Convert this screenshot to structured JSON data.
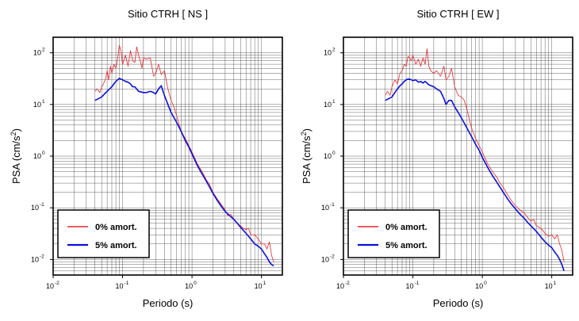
{
  "chart_data": [
    {
      "type": "line",
      "title": "Sitio CTRH [ NS ]",
      "xlabel": "Periodo (s)",
      "ylabel": "PSA (cm/s",
      "ylabel_exp": "2",
      "ylabel_close": ")",
      "x_scale": "log",
      "y_scale": "log",
      "xlim": [
        0.01,
        20
      ],
      "ylim": [
        0.005,
        200
      ],
      "x_ticks": [
        {
          "base": "10",
          "exp": "-2",
          "value": 0.01
        },
        {
          "base": "10",
          "exp": "-1",
          "value": 0.1
        },
        {
          "base": "10",
          "exp": "0",
          "value": 1
        },
        {
          "base": "10",
          "exp": "1",
          "value": 10
        }
      ],
      "y_ticks": [
        {
          "base": "10",
          "exp": "-2",
          "value": 0.01
        },
        {
          "base": "10",
          "exp": "-1",
          "value": 0.1
        },
        {
          "base": "10",
          "exp": "0",
          "value": 1
        },
        {
          "base": "10",
          "exp": "1",
          "value": 10
        },
        {
          "base": "10",
          "exp": "2",
          "value": 100
        }
      ],
      "grid": true,
      "legend_position": "bottom-left",
      "series": [
        {
          "name": "0% amort.",
          "color": "#e8262a",
          "x": [
            0.04,
            0.043,
            0.047,
            0.05,
            0.053,
            0.057,
            0.06,
            0.063,
            0.067,
            0.07,
            0.075,
            0.08,
            0.085,
            0.09,
            0.095,
            0.1,
            0.11,
            0.12,
            0.13,
            0.14,
            0.15,
            0.16,
            0.17,
            0.18,
            0.19,
            0.2,
            0.22,
            0.25,
            0.28,
            0.3,
            0.33,
            0.36,
            0.4,
            0.45,
            0.5,
            0.55,
            0.6,
            0.7,
            0.8,
            0.9,
            1.0,
            1.2,
            1.4,
            1.6,
            1.8,
            2.0,
            2.3,
            2.6,
            3.0,
            3.3,
            3.6,
            4.0,
            4.5,
            5.0,
            5.5,
            6.0,
            6.5,
            7.0,
            8.0,
            9.0,
            10.0,
            11.0,
            12.0,
            13.0,
            14.0,
            15.0
          ],
          "y": [
            18,
            20,
            17,
            22,
            25,
            32,
            45,
            30,
            55,
            40,
            60,
            50,
            80,
            140,
            110,
            60,
            90,
            55,
            110,
            70,
            65,
            130,
            90,
            70,
            50,
            80,
            75,
            80,
            35,
            40,
            60,
            38,
            45,
            20,
            12,
            9,
            6,
            3,
            2.2,
            1.6,
            1.2,
            0.7,
            0.5,
            0.35,
            0.28,
            0.2,
            0.15,
            0.12,
            0.09,
            0.07,
            0.075,
            0.06,
            0.05,
            0.045,
            0.04,
            0.038,
            0.04,
            0.03,
            0.03,
            0.025,
            0.02,
            0.02,
            0.016,
            0.022,
            0.012,
            0.009
          ]
        },
        {
          "name": "5% amort.",
          "color": "#0a10e0",
          "x": [
            0.04,
            0.045,
            0.05,
            0.055,
            0.06,
            0.065,
            0.07,
            0.075,
            0.08,
            0.085,
            0.09,
            0.095,
            0.1,
            0.11,
            0.12,
            0.13,
            0.14,
            0.15,
            0.17,
            0.2,
            0.22,
            0.25,
            0.28,
            0.3,
            0.33,
            0.36,
            0.4,
            0.45,
            0.5,
            0.6,
            0.7,
            0.8,
            0.9,
            1.0,
            1.2,
            1.4,
            1.6,
            1.8,
            2.0,
            2.3,
            2.6,
            3.0,
            3.5,
            4.0,
            4.5,
            5.0,
            6.0,
            7.0,
            8.0,
            9.0,
            10.0,
            11.0,
            12.0,
            13.0,
            14.0,
            15.0
          ],
          "y": [
            12,
            13,
            14,
            16,
            18,
            20,
            22,
            25,
            28,
            30,
            32,
            31,
            30,
            28,
            27,
            25,
            22,
            22,
            18,
            17,
            17,
            18,
            17,
            16,
            20,
            23,
            15,
            10,
            7,
            4.5,
            3,
            2.0,
            1.5,
            1.1,
            0.65,
            0.45,
            0.33,
            0.25,
            0.19,
            0.14,
            0.11,
            0.085,
            0.07,
            0.06,
            0.05,
            0.042,
            0.032,
            0.025,
            0.02,
            0.018,
            0.016,
            0.013,
            0.011,
            0.009,
            0.008,
            0.0075
          ]
        }
      ]
    },
    {
      "type": "line",
      "title": "Sitio CTRH [ EW ]",
      "xlabel": "Periodo (s)",
      "ylabel": "PSA (cm/s",
      "ylabel_exp": "2",
      "ylabel_close": ")",
      "x_scale": "log",
      "y_scale": "log",
      "xlim": [
        0.01,
        20
      ],
      "ylim": [
        0.005,
        200
      ],
      "x_ticks": [
        {
          "base": "10",
          "exp": "-2",
          "value": 0.01
        },
        {
          "base": "10",
          "exp": "-1",
          "value": 0.1
        },
        {
          "base": "10",
          "exp": "0",
          "value": 1
        },
        {
          "base": "10",
          "exp": "1",
          "value": 10
        }
      ],
      "y_ticks": [
        {
          "base": "10",
          "exp": "-2",
          "value": 0.01
        },
        {
          "base": "10",
          "exp": "-1",
          "value": 0.1
        },
        {
          "base": "10",
          "exp": "0",
          "value": 1
        },
        {
          "base": "10",
          "exp": "1",
          "value": 10
        },
        {
          "base": "10",
          "exp": "2",
          "value": 100
        }
      ],
      "grid": true,
      "legend_position": "bottom-left",
      "series": [
        {
          "name": "0% amort.",
          "color": "#e8262a",
          "x": [
            0.04,
            0.043,
            0.047,
            0.05,
            0.055,
            0.06,
            0.065,
            0.07,
            0.075,
            0.08,
            0.085,
            0.09,
            0.095,
            0.1,
            0.11,
            0.12,
            0.13,
            0.14,
            0.15,
            0.16,
            0.17,
            0.18,
            0.2,
            0.22,
            0.25,
            0.28,
            0.3,
            0.33,
            0.36,
            0.4,
            0.45,
            0.5,
            0.55,
            0.6,
            0.7,
            0.8,
            0.9,
            1.0,
            1.2,
            1.4,
            1.6,
            1.8,
            2.0,
            2.3,
            2.6,
            3.0,
            3.5,
            4.0,
            4.5,
            5.0,
            5.5,
            6.0,
            7.0,
            8.0,
            9.0,
            10.0,
            11.0,
            12.0,
            13.0,
            14.0,
            15.0
          ],
          "y": [
            15,
            18,
            15,
            22,
            30,
            25,
            40,
            45,
            60,
            55,
            85,
            80,
            70,
            90,
            60,
            75,
            55,
            80,
            60,
            120,
            55,
            45,
            40,
            45,
            35,
            55,
            30,
            35,
            50,
            22,
            15,
            14,
            12,
            8,
            3.5,
            2.2,
            1.6,
            1.2,
            0.7,
            0.5,
            0.4,
            0.3,
            0.25,
            0.18,
            0.14,
            0.11,
            0.09,
            0.08,
            0.065,
            0.055,
            0.06,
            0.045,
            0.04,
            0.032,
            0.028,
            0.03,
            0.025,
            0.03,
            0.02,
            0.015,
            0.009
          ]
        },
        {
          "name": "5% amort.",
          "color": "#0a10e0",
          "x": [
            0.04,
            0.045,
            0.05,
            0.055,
            0.06,
            0.065,
            0.07,
            0.075,
            0.08,
            0.085,
            0.09,
            0.095,
            0.1,
            0.11,
            0.12,
            0.13,
            0.14,
            0.15,
            0.17,
            0.2,
            0.22,
            0.25,
            0.28,
            0.3,
            0.33,
            0.36,
            0.4,
            0.45,
            0.5,
            0.6,
            0.7,
            0.8,
            0.9,
            1.0,
            1.2,
            1.4,
            1.6,
            1.8,
            2.0,
            2.3,
            2.6,
            3.0,
            3.5,
            4.0,
            4.5,
            5.0,
            6.0,
            7.0,
            8.0,
            9.0,
            10.0,
            11.0,
            12.0,
            13.0,
            14.0,
            15.0
          ],
          "y": [
            12,
            13,
            14,
            17,
            20,
            23,
            25,
            28,
            30,
            31,
            31,
            30,
            29,
            30,
            27,
            28,
            26,
            28,
            24,
            22,
            20,
            18,
            13,
            10,
            12,
            12,
            9,
            7,
            5.5,
            3.5,
            2.4,
            1.7,
            1.3,
            0.95,
            0.6,
            0.42,
            0.32,
            0.25,
            0.2,
            0.15,
            0.12,
            0.095,
            0.075,
            0.063,
            0.052,
            0.045,
            0.035,
            0.027,
            0.022,
            0.019,
            0.017,
            0.014,
            0.012,
            0.01,
            0.008,
            0.006
          ]
        }
      ]
    }
  ]
}
